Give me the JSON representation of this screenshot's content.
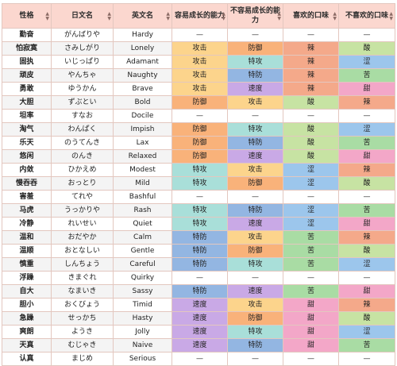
{
  "headers": [
    "性格",
    "日文名",
    "英文名",
    "容易成长的能力",
    "不容易成长的能力",
    "喜欢的口味",
    "不喜欢的口味"
  ],
  "colors": {
    "攻击": "#fcd48c",
    "防御": "#f9b27a",
    "特攻": "#a9dfd9",
    "特防": "#93b6e2",
    "速度": "#c9a9e6",
    "辣": "#f4a98a",
    "酸": "#c7e3a3",
    "涩": "#9cc6ec",
    "苦": "#a9dca4",
    "甜": "#f3a7c8",
    "—": "#ffffff"
  },
  "rows": [
    [
      "勤奋",
      "がんばりや",
      "Hardy",
      "—",
      "—",
      "—",
      "—"
    ],
    [
      "怕寂寞",
      "さみしがり",
      "Lonely",
      "攻击",
      "防御",
      "辣",
      "酸"
    ],
    [
      "固执",
      "いじっぱり",
      "Adamant",
      "攻击",
      "特攻",
      "辣",
      "涩"
    ],
    [
      "顽皮",
      "やんちゃ",
      "Naughty",
      "攻击",
      "特防",
      "辣",
      "苦"
    ],
    [
      "勇敢",
      "ゆうかん",
      "Brave",
      "攻击",
      "速度",
      "辣",
      "甜"
    ],
    [
      "大胆",
      "ずぶとい",
      "Bold",
      "防御",
      "攻击",
      "酸",
      "辣"
    ],
    [
      "坦率",
      "すなお",
      "Docile",
      "—",
      "—",
      "—",
      "—"
    ],
    [
      "淘气",
      "わんぱく",
      "Impish",
      "防御",
      "特攻",
      "酸",
      "涩"
    ],
    [
      "乐天",
      "のうてんき",
      "Lax",
      "防御",
      "特防",
      "酸",
      "苦"
    ],
    [
      "悠闲",
      "のんき",
      "Relaxed",
      "防御",
      "速度",
      "酸",
      "甜"
    ],
    [
      "内敛",
      "ひかえめ",
      "Modest",
      "特攻",
      "攻击",
      "涩",
      "辣"
    ],
    [
      "慢吞吞",
      "おっとり",
      "Mild",
      "特攻",
      "防御",
      "涩",
      "酸"
    ],
    [
      "害羞",
      "てれや",
      "Bashful",
      "—",
      "—",
      "—",
      "—"
    ],
    [
      "马虎",
      "うっかりや",
      "Rash",
      "特攻",
      "特防",
      "涩",
      "苦"
    ],
    [
      "冷静",
      "れいせい",
      "Quiet",
      "特攻",
      "速度",
      "涩",
      "甜"
    ],
    [
      "温和",
      "おだやか",
      "Calm",
      "特防",
      "攻击",
      "苦",
      "辣"
    ],
    [
      "温顺",
      "おとなしい",
      "Gentle",
      "特防",
      "防御",
      "苦",
      "酸"
    ],
    [
      "慎重",
      "しんちょう",
      "Careful",
      "特防",
      "特攻",
      "苦",
      "涩"
    ],
    [
      "浮躁",
      "きまぐれ",
      "Quirky",
      "—",
      "—",
      "—",
      "—"
    ],
    [
      "自大",
      "なまいき",
      "Sassy",
      "特防",
      "速度",
      "苦",
      "甜"
    ],
    [
      "胆小",
      "おくびょう",
      "Timid",
      "速度",
      "攻击",
      "甜",
      "辣"
    ],
    [
      "急躁",
      "せっかち",
      "Hasty",
      "速度",
      "防御",
      "甜",
      "酸"
    ],
    [
      "爽朗",
      "ようき",
      "Jolly",
      "速度",
      "特攻",
      "甜",
      "涩"
    ],
    [
      "天真",
      "むじゃき",
      "Naive",
      "速度",
      "特防",
      "甜",
      "苦"
    ],
    [
      "认真",
      "まじめ",
      "Serious",
      "—",
      "—",
      "—",
      "—"
    ]
  ]
}
